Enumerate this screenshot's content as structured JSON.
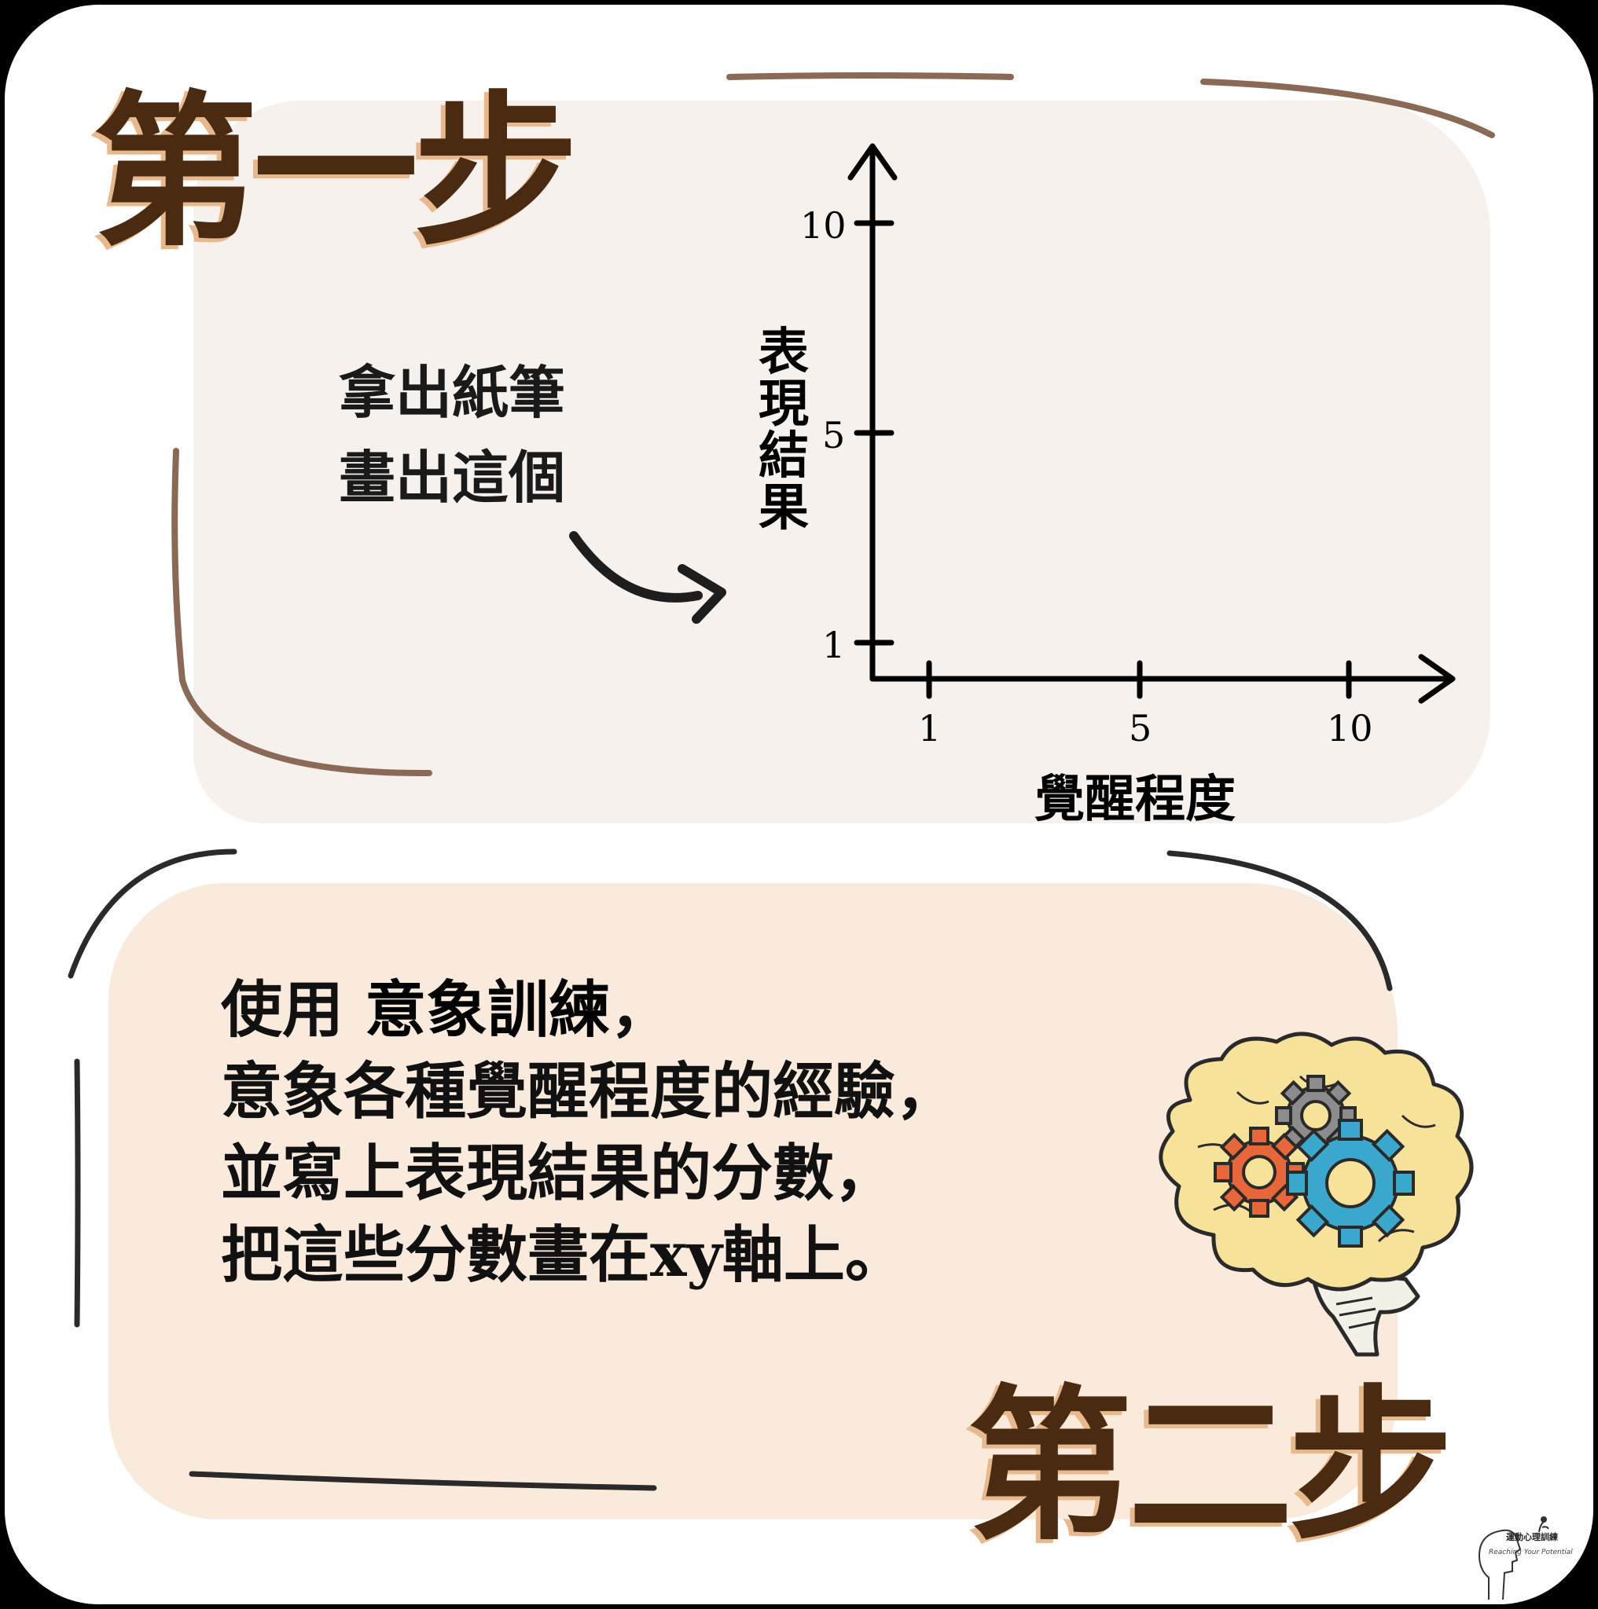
{
  "step1": {
    "title": "第一步",
    "instruction_line1": "拿出紙筆",
    "instruction_line2": "畫出這個",
    "y_axis_label": "表現結果",
    "x_axis_label": "覺醒程度",
    "y_ticks": [
      "10",
      "5",
      "1"
    ],
    "x_ticks": [
      "1",
      "5",
      "10"
    ]
  },
  "step2": {
    "title": "第二步",
    "line1_prefix": "使用 ",
    "line1_highlight": "意象訓練",
    "line1_suffix": "，",
    "line2": "意象各種覺醒程度的經驗，",
    "line3": "並寫上表現結果的分數，",
    "line4": "把這些分數畫在xy軸上。"
  },
  "logo": {
    "title": "運動心理訓練",
    "subtitle": "Reaching Your Potential"
  },
  "colors": {
    "title_brown": "#4a2a10",
    "title_shadow": "#e8b98c",
    "panel1_bg": "#f6f1ec",
    "panel2_bg": "#f9eadb",
    "sketch_brown": "#8a6a55",
    "sketch_dark": "#2a2a2a",
    "brain_yellow": "#f7e29a",
    "gear_gray": "#8c8c8c",
    "gear_orange": "#e8673a",
    "gear_blue": "#3aa7cc"
  },
  "icons": {
    "arrow": "curved-arrow-icon",
    "brain": "brain-gears-icon",
    "logo": "head-silhouette-icon"
  }
}
